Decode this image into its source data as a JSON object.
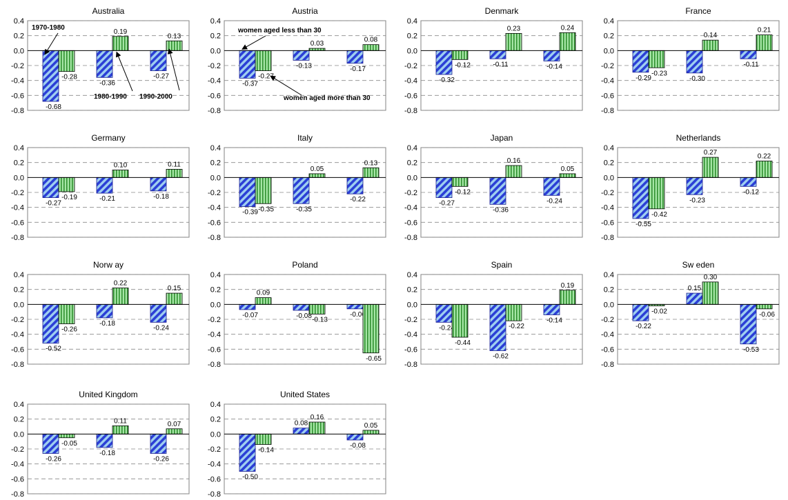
{
  "colors": {
    "under30": "#2b3fd6",
    "under30_stripe": "#9fcff0",
    "over30": "#a6e6a6",
    "over30_stripe": "#2f8f2f",
    "grid": "#888888",
    "axis": "#000000",
    "frame": "#808080"
  },
  "annotations": {
    "d1970": "1970-1980",
    "d1980": "1980-1990",
    "d1990": "1990-2000",
    "under30": "women aged less than 30",
    "over30": "women aged more than 30"
  },
  "chart_data": [
    {
      "type": "bar",
      "title": "Australia",
      "categories": [
        "1970-1980",
        "1980-1990",
        "1990-2000"
      ],
      "ylim": [
        -0.8,
        0.4
      ],
      "yticks": [
        "0.4",
        "0.2",
        "0.0",
        "-0.2",
        "-0.4",
        "-0.6",
        "-0.8"
      ],
      "series": [
        {
          "name": "women aged less than 30",
          "values": [
            -0.68,
            -0.36,
            -0.27
          ],
          "labels": [
            "-0.68",
            "-0.36",
            "-0.27"
          ]
        },
        {
          "name": "women aged more than 30",
          "values": [
            -0.28,
            0.19,
            0.13
          ],
          "labels": [
            "-0.28",
            "0.19",
            "0.13"
          ]
        }
      ]
    },
    {
      "type": "bar",
      "title": "Austria",
      "categories": [
        "1970-1980",
        "1980-1990",
        "1990-2000"
      ],
      "ylim": [
        -0.8,
        0.4
      ],
      "yticks": [
        "0.4",
        "0.2",
        "0.0",
        "-0.2",
        "-0.4",
        "-0.6",
        "-0.8"
      ],
      "series": [
        {
          "name": "women aged less than 30",
          "values": [
            -0.37,
            -0.13,
            -0.17
          ],
          "labels": [
            "-0.37",
            "-0.13",
            "-0.17"
          ]
        },
        {
          "name": "women aged more than 30",
          "values": [
            -0.27,
            0.03,
            0.08
          ],
          "labels": [
            "-0.27",
            "0.03",
            "0.08"
          ]
        }
      ]
    },
    {
      "type": "bar",
      "title": "Denmark",
      "categories": [
        "1970-1980",
        "1980-1990",
        "1990-2000"
      ],
      "ylim": [
        -0.8,
        0.4
      ],
      "yticks": [
        "0.4",
        "0.2",
        "0.0",
        "-0.2",
        "-0.4",
        "-0.6",
        "-0.8"
      ],
      "series": [
        {
          "name": "women aged less than 30",
          "values": [
            -0.32,
            -0.11,
            -0.14
          ],
          "labels": [
            "-0.32",
            "-0.11",
            "-0.14"
          ]
        },
        {
          "name": "women aged more than 30",
          "values": [
            -0.12,
            0.23,
            0.24
          ],
          "labels": [
            "-0.12",
            "0.23",
            "0.24"
          ]
        }
      ]
    },
    {
      "type": "bar",
      "title": "France",
      "categories": [
        "1970-1980",
        "1980-1990",
        "1990-2000"
      ],
      "ylim": [
        -0.8,
        0.4
      ],
      "yticks": [
        "0.4",
        "0.2",
        "0.0",
        "-0.2",
        "-0.4",
        "-0.6",
        "-0.8"
      ],
      "series": [
        {
          "name": "women aged less than 30",
          "values": [
            -0.29,
            -0.3,
            -0.11
          ],
          "labels": [
            "-0.29",
            "-0.30",
            "-0.11"
          ]
        },
        {
          "name": "women aged more than 30",
          "values": [
            -0.23,
            0.14,
            0.21
          ],
          "labels": [
            "-0.23",
            "0.14",
            "0.21"
          ]
        }
      ]
    },
    {
      "type": "bar",
      "title": "Germany",
      "categories": [
        "1970-1980",
        "1980-1990",
        "1990-2000"
      ],
      "ylim": [
        -0.8,
        0.4
      ],
      "yticks": [
        "0.4",
        "0.2",
        "0.0",
        "-0.2",
        "-0.4",
        "-0.6",
        "-0.8"
      ],
      "series": [
        {
          "name": "women aged less than 30",
          "values": [
            -0.27,
            -0.21,
            -0.18
          ],
          "labels": [
            "-0.27",
            "-0.21",
            "-0.18"
          ]
        },
        {
          "name": "women aged more than 30",
          "values": [
            -0.19,
            0.1,
            0.11
          ],
          "labels": [
            "-0.19",
            "0.10",
            "0.11"
          ]
        }
      ]
    },
    {
      "type": "bar",
      "title": "Italy",
      "categories": [
        "1970-1980",
        "1980-1990",
        "1990-2000"
      ],
      "ylim": [
        -0.8,
        0.4
      ],
      "yticks": [
        "0.4",
        "0.2",
        "0.0",
        "-0.2",
        "-0.4",
        "-0.6",
        "-0.8"
      ],
      "series": [
        {
          "name": "women aged less than 30",
          "values": [
            -0.39,
            -0.35,
            -0.22
          ],
          "labels": [
            "-0.39",
            "-0.35",
            "-0.22"
          ]
        },
        {
          "name": "women aged more than 30",
          "values": [
            -0.35,
            0.05,
            0.13
          ],
          "labels": [
            "-0.35",
            "0.05",
            "0.13"
          ]
        }
      ]
    },
    {
      "type": "bar",
      "title": "Japan",
      "categories": [
        "1970-1980",
        "1980-1990",
        "1990-2000"
      ],
      "ylim": [
        -0.8,
        0.4
      ],
      "yticks": [
        "0.4",
        "0.2",
        "0.0",
        "-0.2",
        "-0.4",
        "-0.6",
        "-0.8"
      ],
      "series": [
        {
          "name": "women aged less than 30",
          "values": [
            -0.27,
            -0.36,
            -0.24
          ],
          "labels": [
            "-0.27",
            "-0.36",
            "-0.24"
          ]
        },
        {
          "name": "women aged more than 30",
          "values": [
            -0.12,
            0.16,
            0.05
          ],
          "labels": [
            "-0.12",
            "0.16",
            "0.05"
          ]
        }
      ]
    },
    {
      "type": "bar",
      "title": "Netherlands",
      "categories": [
        "1970-1980",
        "1980-1990",
        "1990-2000"
      ],
      "ylim": [
        -0.8,
        0.4
      ],
      "yticks": [
        "0.4",
        "0.2",
        "0.0",
        "-0.2",
        "-0.4",
        "-0.6",
        "-0.8"
      ],
      "series": [
        {
          "name": "women aged less than 30",
          "values": [
            -0.55,
            -0.23,
            -0.12
          ],
          "labels": [
            "-0.55",
            "-0.23",
            "-0.12"
          ]
        },
        {
          "name": "women aged more than 30",
          "values": [
            -0.42,
            0.27,
            0.22
          ],
          "labels": [
            "-0.42",
            "0.27",
            "0.22"
          ]
        }
      ]
    },
    {
      "type": "bar",
      "title": "Norw ay",
      "categories": [
        "1970-1980",
        "1980-1990",
        "1990-2000"
      ],
      "ylim": [
        -0.8,
        0.4
      ],
      "yticks": [
        "0.4",
        "0.2",
        "0.0",
        "-0.2",
        "-0.4",
        "-0.6",
        "-0.8"
      ],
      "series": [
        {
          "name": "women aged less than 30",
          "values": [
            -0.52,
            -0.18,
            -0.24
          ],
          "labels": [
            "-0.52",
            "-0.18",
            "-0.24"
          ]
        },
        {
          "name": "women aged more than 30",
          "values": [
            -0.26,
            0.22,
            0.15
          ],
          "labels": [
            "-0.26",
            "0.22",
            "0.15"
          ]
        }
      ]
    },
    {
      "type": "bar",
      "title": "Poland",
      "categories": [
        "1970-1980",
        "1980-1990",
        "1990-2000"
      ],
      "ylim": [
        -0.8,
        0.4
      ],
      "yticks": [
        "0.4",
        "0.2",
        "0.0",
        "-0.2",
        "-0.4",
        "-0.6",
        "-0.8"
      ],
      "series": [
        {
          "name": "women aged less than 30",
          "values": [
            -0.07,
            -0.08,
            -0.06
          ],
          "labels": [
            "-0.07",
            "-0.08",
            "-0.06"
          ]
        },
        {
          "name": "women aged more than 30",
          "values": [
            0.09,
            -0.13,
            -0.65
          ],
          "labels": [
            "0.09",
            "-0.13",
            "-0.65"
          ]
        }
      ]
    },
    {
      "type": "bar",
      "title": "Spain",
      "categories": [
        "1970-1980",
        "1980-1990",
        "1990-2000"
      ],
      "ylim": [
        -0.8,
        0.4
      ],
      "yticks": [
        "0.4",
        "0.2",
        "0.0",
        "-0.2",
        "-0.4",
        "-0.6",
        "-0.8"
      ],
      "series": [
        {
          "name": "women aged less than 30",
          "values": [
            -0.24,
            -0.62,
            -0.14
          ],
          "labels": [
            "-0.24",
            "-0.62",
            "-0.14"
          ]
        },
        {
          "name": "women aged more than 30",
          "values": [
            -0.44,
            -0.22,
            0.19
          ],
          "labels": [
            "-0.44",
            "-0.22",
            "0.19"
          ]
        }
      ]
    },
    {
      "type": "bar",
      "title": "Sw eden",
      "categories": [
        "1970-1980",
        "1980-1990",
        "1990-2000"
      ],
      "ylim": [
        -0.8,
        0.4
      ],
      "yticks": [
        "0.4",
        "0.2",
        "0.0",
        "-0.2",
        "-0.4",
        "-0.6",
        "-0.8"
      ],
      "series": [
        {
          "name": "women aged less than 30",
          "values": [
            -0.22,
            0.15,
            -0.53
          ],
          "labels": [
            "-0.22",
            "0.15",
            "-0.53"
          ]
        },
        {
          "name": "women aged more than 30",
          "values": [
            -0.02,
            0.3,
            -0.06
          ],
          "labels": [
            "-0.02",
            "0.30",
            "-0.06"
          ]
        }
      ]
    },
    {
      "type": "bar",
      "title": "United Kingdom",
      "categories": [
        "1970-1980",
        "1980-1990",
        "1990-2000"
      ],
      "ylim": [
        -0.8,
        0.4
      ],
      "yticks": [
        "0.4",
        "0.2",
        "0.0",
        "-0.2",
        "-0.4",
        "-0.6",
        "-0.8"
      ],
      "series": [
        {
          "name": "women aged less than 30",
          "values": [
            -0.26,
            -0.18,
            -0.26
          ],
          "labels": [
            "-0.26",
            "-0.18",
            "-0.26"
          ]
        },
        {
          "name": "women aged more than 30",
          "values": [
            -0.05,
            0.11,
            0.07
          ],
          "labels": [
            "-0.05",
            "0.11",
            "0.07"
          ]
        }
      ]
    },
    {
      "type": "bar",
      "title": "United States",
      "categories": [
        "1970-1980",
        "1980-1990",
        "1990-2000"
      ],
      "ylim": [
        -0.8,
        0.4
      ],
      "yticks": [
        "0.4",
        "0.2",
        "0.0",
        "-0.2",
        "-0.4",
        "-0.6",
        "-0.8"
      ],
      "series": [
        {
          "name": "women aged less than 30",
          "values": [
            -0.5,
            0.08,
            -0.08
          ],
          "labels": [
            "-0.50",
            "0.08",
            "-0.08"
          ]
        },
        {
          "name": "women aged more than 30",
          "values": [
            -0.14,
            0.16,
            0.05
          ],
          "labels": [
            "-0.14",
            "0.16",
            "0.05"
          ]
        }
      ]
    }
  ]
}
